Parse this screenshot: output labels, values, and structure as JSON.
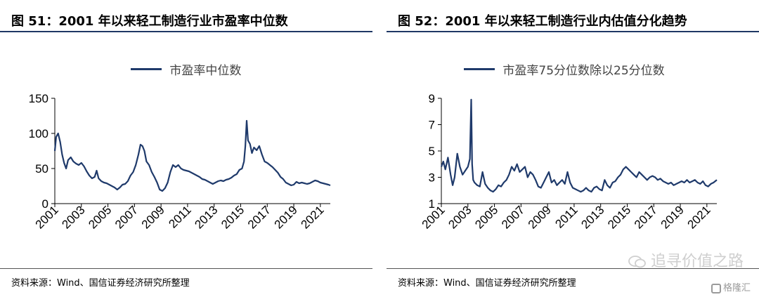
{
  "charts": [
    {
      "title": "图 51：2001 年以来轻工制造行业市盈率中位数",
      "legend": "市盈率中位数",
      "source": "资料来源：Wind、国信证券经济研究所整理"
    },
    {
      "title": "图 52：2001 年以来轻工制造行业内估值分化趋势",
      "legend": "市盈率75分位数除以25分位数",
      "source": "资料来源：Wind、国信证券经济研究所整理"
    }
  ],
  "watermark": "追寻价值之路",
  "brand": "格隆汇",
  "chart_data": [
    {
      "type": "line",
      "title": "",
      "xlabel": "",
      "ylabel": "",
      "ylim": [
        0,
        150
      ],
      "yticks": [
        0,
        50,
        100,
        150
      ],
      "xlim": [
        2001,
        2021.75
      ],
      "xticks": [
        "2001",
        "2003",
        "2005",
        "2007",
        "2009",
        "2011",
        "2013",
        "2015",
        "2017",
        "2019",
        "2021"
      ],
      "grid": false,
      "legend_position": "top",
      "color": "#1f3a6b",
      "series": [
        {
          "name": "市盈率中位数",
          "x": [
            2001.0,
            2001.1,
            2001.25,
            2001.4,
            2001.55,
            2001.7,
            2001.85,
            2002.0,
            2002.2,
            2002.4,
            2002.6,
            2002.8,
            2003.0,
            2003.2,
            2003.4,
            2003.6,
            2003.8,
            2004.0,
            2004.15,
            2004.3,
            2004.5,
            2004.7,
            2004.9,
            2005.1,
            2005.3,
            2005.5,
            2005.7,
            2005.9,
            2006.1,
            2006.3,
            2006.5,
            2006.7,
            2006.9,
            2007.1,
            2007.3,
            2007.45,
            2007.6,
            2007.75,
            2007.9,
            2008.1,
            2008.3,
            2008.5,
            2008.7,
            2008.9,
            2009.1,
            2009.3,
            2009.5,
            2009.7,
            2009.9,
            2010.1,
            2010.3,
            2010.5,
            2010.7,
            2010.9,
            2011.1,
            2011.3,
            2011.5,
            2011.7,
            2011.9,
            2012.1,
            2012.3,
            2012.5,
            2012.7,
            2012.9,
            2013.1,
            2013.3,
            2013.5,
            2013.7,
            2013.9,
            2014.1,
            2014.3,
            2014.5,
            2014.7,
            2014.9,
            2015.1,
            2015.25,
            2015.35,
            2015.45,
            2015.55,
            2015.7,
            2015.85,
            2016.0,
            2016.2,
            2016.4,
            2016.6,
            2016.8,
            2017.0,
            2017.2,
            2017.4,
            2017.6,
            2017.8,
            2018.0,
            2018.2,
            2018.4,
            2018.6,
            2018.8,
            2019.0,
            2019.2,
            2019.4,
            2019.6,
            2019.8,
            2020.0,
            2020.2,
            2020.4,
            2020.6,
            2020.8,
            2021.0,
            2021.2,
            2021.4,
            2021.6,
            2021.75
          ],
          "values": [
            75,
            95,
            100,
            88,
            70,
            58,
            50,
            62,
            66,
            60,
            57,
            55,
            58,
            53,
            46,
            40,
            36,
            38,
            47,
            36,
            32,
            30,
            29,
            27,
            25,
            23,
            20,
            23,
            27,
            28,
            32,
            40,
            45,
            55,
            70,
            84,
            82,
            75,
            60,
            55,
            45,
            38,
            30,
            20,
            18,
            22,
            30,
            45,
            55,
            52,
            55,
            50,
            48,
            47,
            46,
            44,
            42,
            40,
            38,
            35,
            34,
            32,
            30,
            28,
            30,
            32,
            33,
            32,
            34,
            35,
            37,
            40,
            42,
            48,
            50,
            60,
            82,
            118,
            90,
            85,
            72,
            80,
            76,
            82,
            70,
            60,
            58,
            55,
            52,
            48,
            44,
            38,
            35,
            30,
            28,
            26,
            27,
            31,
            29,
            30,
            29,
            28,
            29,
            31,
            33,
            32,
            30,
            29,
            28,
            27,
            26
          ]
        }
      ]
    },
    {
      "type": "line",
      "title": "",
      "xlabel": "",
      "ylabel": "",
      "ylim": [
        1,
        9
      ],
      "yticks": [
        1,
        3,
        5,
        7,
        9
      ],
      "xlim": [
        2001,
        2021.75
      ],
      "xticks": [
        "2001",
        "2003",
        "2005",
        "2007",
        "2009",
        "2011",
        "2013",
        "2015",
        "2017",
        "2019",
        "2021"
      ],
      "grid": false,
      "legend_position": "top",
      "color": "#1f3a6b",
      "series": [
        {
          "name": "市盈率75分位数除以25分位数",
          "x": [
            2001.0,
            2001.15,
            2001.3,
            2001.5,
            2001.7,
            2001.85,
            2002.0,
            2002.2,
            2002.4,
            2002.6,
            2002.8,
            2003.0,
            2003.15,
            2003.25,
            2003.32,
            2003.4,
            2003.5,
            2003.7,
            2003.9,
            2004.1,
            2004.3,
            2004.5,
            2004.7,
            2004.9,
            2005.1,
            2005.3,
            2005.5,
            2005.7,
            2005.9,
            2006.1,
            2006.3,
            2006.5,
            2006.7,
            2006.9,
            2007.1,
            2007.3,
            2007.5,
            2007.7,
            2007.9,
            2008.1,
            2008.3,
            2008.5,
            2008.7,
            2008.9,
            2009.1,
            2009.3,
            2009.5,
            2009.7,
            2009.9,
            2010.1,
            2010.3,
            2010.5,
            2010.7,
            2010.9,
            2011.1,
            2011.3,
            2011.5,
            2011.7,
            2011.9,
            2012.1,
            2012.3,
            2012.5,
            2012.7,
            2012.9,
            2013.1,
            2013.3,
            2013.5,
            2013.7,
            2013.9,
            2014.1,
            2014.3,
            2014.5,
            2014.7,
            2014.9,
            2015.1,
            2015.3,
            2015.5,
            2015.7,
            2015.9,
            2016.1,
            2016.3,
            2016.5,
            2016.7,
            2016.9,
            2017.1,
            2017.3,
            2017.5,
            2017.7,
            2017.9,
            2018.1,
            2018.3,
            2018.5,
            2018.7,
            2018.9,
            2019.1,
            2019.3,
            2019.5,
            2019.7,
            2019.9,
            2020.1,
            2020.3,
            2020.5,
            2020.7,
            2020.9,
            2021.1,
            2021.3,
            2021.5,
            2021.75
          ],
          "values": [
            3.8,
            4.2,
            3.6,
            4.5,
            3.2,
            2.4,
            3.0,
            4.8,
            3.8,
            3.2,
            3.5,
            3.8,
            4.4,
            8.9,
            4.0,
            2.8,
            2.6,
            2.4,
            2.3,
            3.4,
            2.5,
            2.2,
            2.0,
            1.9,
            2.1,
            2.4,
            2.3,
            2.6,
            2.8,
            3.2,
            3.8,
            3.5,
            4.0,
            3.4,
            3.6,
            3.8,
            3.0,
            3.4,
            3.2,
            2.8,
            2.3,
            2.2,
            2.6,
            3.0,
            3.4,
            2.6,
            2.8,
            2.4,
            2.6,
            2.8,
            2.5,
            3.4,
            2.6,
            2.2,
            2.1,
            2.0,
            1.9,
            2.0,
            2.2,
            2.0,
            1.9,
            2.2,
            2.3,
            2.1,
            2.0,
            2.8,
            2.4,
            2.2,
            2.6,
            2.7,
            3.0,
            3.2,
            3.6,
            3.8,
            3.6,
            3.4,
            3.2,
            3.0,
            3.4,
            3.2,
            3.0,
            2.8,
            3.0,
            3.1,
            3.0,
            2.8,
            2.9,
            2.7,
            2.6,
            2.5,
            2.6,
            2.4,
            2.5,
            2.6,
            2.7,
            2.6,
            2.8,
            2.6,
            2.7,
            2.8,
            2.6,
            2.5,
            2.7,
            2.4,
            2.3,
            2.5,
            2.6,
            2.8
          ]
        }
      ]
    }
  ]
}
